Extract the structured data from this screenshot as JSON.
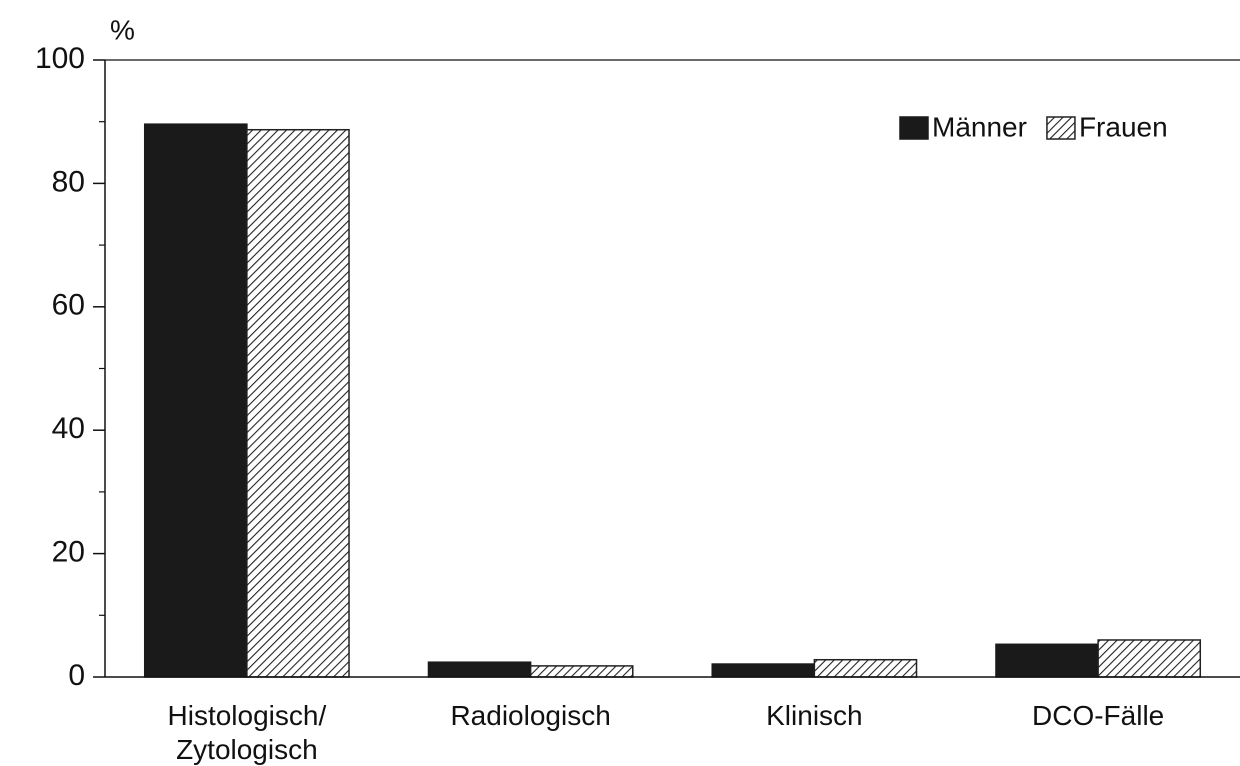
{
  "chart_data": {
    "type": "bar",
    "y_axis_label": "%",
    "categories": [
      "Histologisch/\nZytologisch",
      "Radiologisch",
      "Klinisch",
      "DCO-Fälle"
    ],
    "series": [
      {
        "name": "Männer",
        "color": "#1a1a1a",
        "hatch": false,
        "values": [
          89.6,
          2.4,
          2.1,
          5.3
        ]
      },
      {
        "name": "Frauen",
        "color": "#222222",
        "hatch": true,
        "values": [
          88.7,
          1.8,
          2.8,
          6.0
        ]
      }
    ],
    "ylim": [
      0,
      100
    ],
    "yticks": [
      0,
      20,
      40,
      60,
      80,
      100
    ],
    "yticks_minor": [
      10,
      30,
      50,
      70,
      90
    ],
    "legend": "upper right"
  }
}
